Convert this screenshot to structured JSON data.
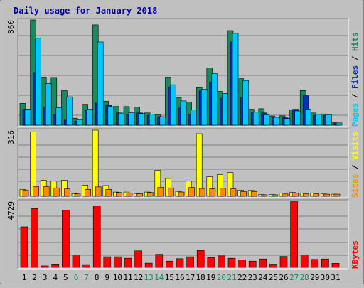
{
  "chart_data": {
    "type": "bar",
    "title": "Daily usage for January 2018",
    "categories": [
      "1",
      "2",
      "3",
      "4",
      "5",
      "6",
      "7",
      "8",
      "9",
      "10",
      "11",
      "12",
      "13",
      "14",
      "15",
      "16",
      "17",
      "18",
      "19",
      "20",
      "21",
      "22",
      "23",
      "24",
      "25",
      "26",
      "27",
      "28",
      "29",
      "30",
      "31"
    ],
    "weekend_days": [
      6,
      7,
      13,
      14,
      20,
      21,
      27,
      28
    ],
    "panels": [
      {
        "id": "hits-files-pages",
        "ymax_label": "860",
        "ymax": 860,
        "legend": [
          {
            "text": "Pages",
            "color": "#00c8ff"
          },
          {
            "text": " / ",
            "color": "#000000"
          },
          {
            "text": "Files",
            "color": "#0030c0"
          },
          {
            "text": " / ",
            "color": "#000000"
          },
          {
            "text": "Hits",
            "color": "#1a8a5e"
          }
        ],
        "series": [
          {
            "name": "Hits",
            "color": "#1a8a5e",
            "values": [
              178,
              860,
              392,
              390,
              282,
              57,
              170,
              820,
              195,
              153,
              152,
              148,
              100,
              84,
              392,
              223,
              188,
              307,
              467,
              276,
              773,
              380,
              130,
              134,
              75,
              76,
              125,
              283,
              100,
              92,
              20
            ]
          },
          {
            "name": "Files",
            "color": "#0030c0",
            "values": [
              130,
              430,
              150,
              90,
              40,
              33,
              120,
              180,
              160,
              100,
              90,
              100,
              80,
              70,
              310,
              140,
              90,
              280,
              350,
              220,
              680,
              230,
              100,
              100,
              60,
              60,
              130,
              240,
              80,
              80,
              18
            ]
          },
          {
            "name": "Pages",
            "color": "#00c8ff",
            "values": [
              130,
              710,
              340,
              142,
              232,
              43,
              130,
              680,
              150,
              98,
              101,
              94,
              90,
              68,
              330,
              198,
              124,
              292,
              420,
              260,
              750,
              365,
              106,
              85,
              64,
              54,
              116,
              130,
              88,
              86,
              18
            ]
          }
        ]
      },
      {
        "id": "visits-sites",
        "ymax_label": "316",
        "ymax": 316,
        "legend": [
          {
            "text": "Sites",
            "color": "#ff8c00"
          },
          {
            "text": " / ",
            "color": "#000000"
          },
          {
            "text": "Visits",
            "color": "#ffff00"
          }
        ],
        "series": [
          {
            "name": "Visits",
            "color": "#ffff00",
            "values": [
              33,
              308,
              76,
              72,
              76,
              13,
              53,
              316,
              51,
              20,
              20,
              13,
              20,
              124,
              85,
              23,
              72,
              299,
              93,
              104,
              113,
              29,
              28,
              8,
              8,
              15,
              18,
              15,
              15,
              11,
              10
            ]
          },
          {
            "name": "Sites",
            "color": "#ff8c00",
            "values": [
              30,
              46,
              46,
              40,
              35,
              11,
              33,
              45,
              33,
              18,
              16,
              12,
              18,
              42,
              40,
              20,
              42,
              37,
              36,
              38,
              35,
              22,
              22,
              7,
              7,
              11,
              15,
              12,
              12,
              10,
              10
            ]
          }
        ]
      },
      {
        "id": "kbytes",
        "ymax_label": "4729",
        "ymax": 4729,
        "legend": [
          {
            "text": "KBytes",
            "color": "#ff0000"
          }
        ],
        "series": [
          {
            "name": "KBytes",
            "color": "#ff0000",
            "values": [
              2900,
              4200,
              100,
              240,
              4080,
              900,
              200,
              4380,
              760,
              760,
              650,
              1180,
              300,
              930,
              450,
              620,
              760,
              1200,
              700,
              820,
              650,
              540,
              450,
              600,
              230,
              780,
              4700,
              880,
              570,
              600,
              290
            ]
          }
        ]
      }
    ]
  }
}
